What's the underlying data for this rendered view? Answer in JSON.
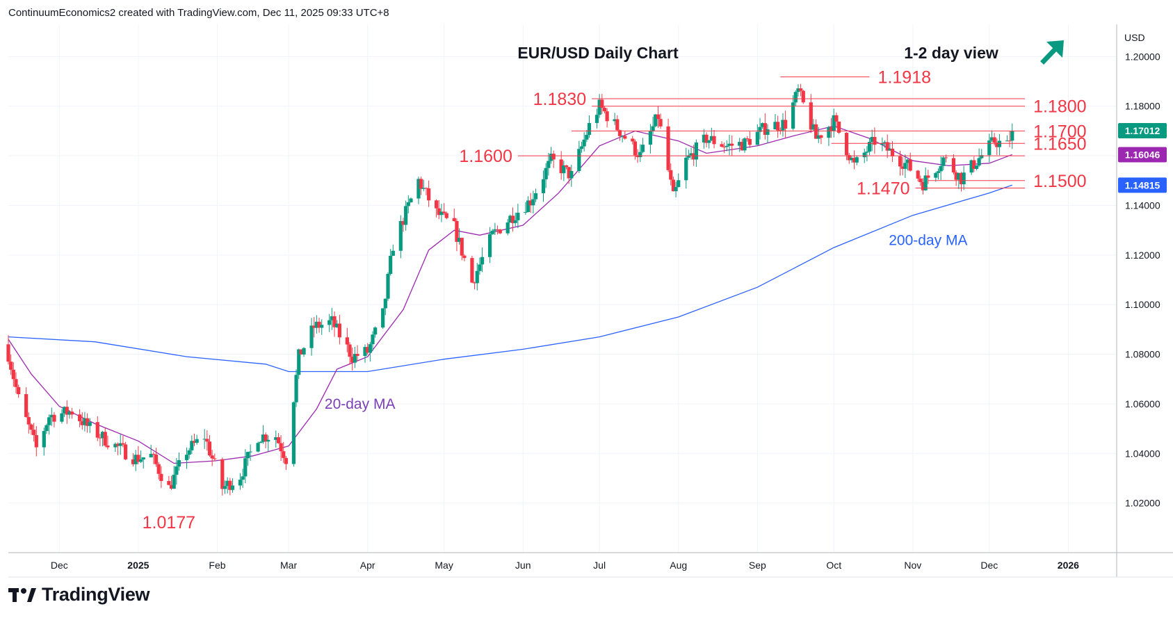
{
  "header": {
    "attribution": "ContinuumEconomics2 created with TradingView.com, Dec 11, 2025 09:33 UTC+8"
  },
  "footer": {
    "brand": "TradingView",
    "logo_icon": "tradingview-logo-icon"
  },
  "colors": {
    "up": "#089981",
    "down": "#f23645",
    "ma20": "#9c27b0",
    "ma200": "#2962ff",
    "level": "#f23645",
    "grid": "#f0f3fa",
    "axis_text": "#131722",
    "view_arrow": "#089981"
  },
  "chart_data": {
    "type": "candlestick",
    "title": "EUR/USD Daily Chart",
    "view_label": "1-2 day view",
    "view_icon": "arrow-up-right-icon",
    "currency": "USD",
    "ylim": [
      1.0,
      1.213
    ],
    "y_ticks": [
      1.02,
      1.04,
      1.06,
      1.08,
      1.1,
      1.12,
      1.14,
      1.16,
      1.18,
      1.2
    ],
    "y_tick_labels": [
      "1.02000",
      "1.04000",
      "1.06000",
      "1.08000",
      "1.10000",
      "1.12000",
      "1.14000",
      "1.16000",
      "1.18000",
      "1.20000"
    ],
    "x_range": [
      "2024-11-11",
      "2026-01-20"
    ],
    "x_ticks": [
      {
        "date": "2024-12-01",
        "label": "Dec"
      },
      {
        "date": "2025-01-01",
        "label": "2025"
      },
      {
        "date": "2025-02-01",
        "label": "Feb"
      },
      {
        "date": "2025-03-01",
        "label": "Mar"
      },
      {
        "date": "2025-04-01",
        "label": "Apr"
      },
      {
        "date": "2025-05-01",
        "label": "May"
      },
      {
        "date": "2025-06-01",
        "label": "Jun"
      },
      {
        "date": "2025-07-01",
        "label": "Jul"
      },
      {
        "date": "2025-08-01",
        "label": "Aug"
      },
      {
        "date": "2025-09-01",
        "label": "Sep"
      },
      {
        "date": "2025-10-01",
        "label": "Oct"
      },
      {
        "date": "2025-11-01",
        "label": "Nov"
      },
      {
        "date": "2025-12-01",
        "label": "Dec"
      },
      {
        "date": "2026-01-01",
        "label": "2026"
      }
    ],
    "price_badges": [
      {
        "label": "1.17012",
        "value": 1.17012,
        "color": "#089981"
      },
      {
        "label": "1.16046",
        "value": 1.16046,
        "color": "#9c27b0"
      },
      {
        "label": "1.14815",
        "value": 1.14815,
        "color": "#2962ff"
      }
    ],
    "levels": [
      {
        "label": "1.1918",
        "value": 1.1918,
        "from": "2025-09-10",
        "to": "2025-10-15",
        "label_side": "right"
      },
      {
        "label": "1.1830",
        "value": 1.183,
        "from": "2025-06-28",
        "to": "2025-12-15",
        "label_side": "left"
      },
      {
        "label": "1.1800",
        "value": 1.18,
        "from": "2025-06-28",
        "to": "2025-12-15",
        "label_side": "right"
      },
      {
        "label": "1.1700",
        "value": 1.17,
        "from": "2025-06-20",
        "to": "2025-12-15",
        "label_side": "right"
      },
      {
        "label": "1.1650",
        "value": 1.165,
        "from": "2025-09-30",
        "to": "2025-12-15",
        "label_side": "right"
      },
      {
        "label": "1.1600",
        "value": 1.16,
        "from": "2025-05-30",
        "to": "2025-12-15",
        "label_side": "left"
      },
      {
        "label": "1.1500",
        "value": 1.15,
        "from": "2025-11-07",
        "to": "2025-12-15",
        "label_side": "right"
      },
      {
        "label": "1.1470",
        "value": 1.147,
        "from": "2025-11-02",
        "to": "2025-12-15",
        "label_side": "left"
      }
    ],
    "annotations": [
      {
        "text": "1.0177",
        "date": "2025-01-13",
        "value": 1.0177,
        "color": "#f23645"
      },
      {
        "text": "20-day MA",
        "date": "2025-03-29",
        "value": 1.058,
        "color": "#7b3fb8"
      },
      {
        "text": "200-day MA",
        "date": "2025-11-07",
        "value": 1.124,
        "color": "#2962ff"
      }
    ],
    "series": [
      {
        "name": "20-day MA",
        "color": "#9c27b0",
        "points": [
          [
            "2024-11-11",
            1.086
          ],
          [
            "2024-11-20",
            1.072
          ],
          [
            "2024-12-01",
            1.059
          ],
          [
            "2024-12-15",
            1.052
          ],
          [
            "2025-01-01",
            1.045
          ],
          [
            "2025-01-15",
            1.036
          ],
          [
            "2025-01-31",
            1.037
          ],
          [
            "2025-02-15",
            1.039
          ],
          [
            "2025-03-01",
            1.043
          ],
          [
            "2025-03-12",
            1.058
          ],
          [
            "2025-03-20",
            1.074
          ],
          [
            "2025-04-01",
            1.079
          ],
          [
            "2025-04-15",
            1.098
          ],
          [
            "2025-04-25",
            1.122
          ],
          [
            "2025-05-05",
            1.13
          ],
          [
            "2025-05-15",
            1.128
          ],
          [
            "2025-06-01",
            1.132
          ],
          [
            "2025-06-15",
            1.145
          ],
          [
            "2025-07-01",
            1.164
          ],
          [
            "2025-07-15",
            1.17
          ],
          [
            "2025-08-01",
            1.166
          ],
          [
            "2025-08-12",
            1.161
          ],
          [
            "2025-09-01",
            1.164
          ],
          [
            "2025-09-15",
            1.168
          ],
          [
            "2025-10-01",
            1.172
          ],
          [
            "2025-10-15",
            1.167
          ],
          [
            "2025-11-01",
            1.158
          ],
          [
            "2025-11-15",
            1.156
          ],
          [
            "2025-12-01",
            1.157
          ],
          [
            "2025-12-10",
            1.1605
          ]
        ]
      },
      {
        "name": "200-day MA",
        "color": "#2962ff",
        "points": [
          [
            "2024-11-11",
            1.087
          ],
          [
            "2024-12-15",
            1.085
          ],
          [
            "2025-01-20",
            1.079
          ],
          [
            "2025-02-20",
            1.076
          ],
          [
            "2025-03-01",
            1.073
          ],
          [
            "2025-04-01",
            1.073
          ],
          [
            "2025-05-01",
            1.078
          ],
          [
            "2025-06-01",
            1.082
          ],
          [
            "2025-07-01",
            1.087
          ],
          [
            "2025-08-01",
            1.095
          ],
          [
            "2025-09-01",
            1.107
          ],
          [
            "2025-10-01",
            1.123
          ],
          [
            "2025-11-01",
            1.136
          ],
          [
            "2025-12-01",
            1.145
          ],
          [
            "2025-12-10",
            1.1482
          ]
        ]
      }
    ],
    "candles_note": "approximate daily path, values in price units",
    "price_path": [
      [
        "2024-11-11",
        1.08
      ],
      [
        "2024-11-15",
        1.062
      ],
      [
        "2024-11-22",
        1.042
      ],
      [
        "2024-11-27",
        1.055
      ],
      [
        "2024-12-06",
        1.057
      ],
      [
        "2024-12-13",
        1.05
      ],
      [
        "2024-12-20",
        1.045
      ],
      [
        "2024-12-31",
        1.038
      ],
      [
        "2025-01-06",
        1.039
      ],
      [
        "2025-01-13",
        1.026
      ],
      [
        "2025-01-20",
        1.041
      ],
      [
        "2025-01-27",
        1.047
      ],
      [
        "2025-02-03",
        1.026
      ],
      [
        "2025-02-10",
        1.031
      ],
      [
        "2025-02-17",
        1.047
      ],
      [
        "2025-02-24",
        1.047
      ],
      [
        "2025-02-28",
        1.038
      ],
      [
        "2025-03-05",
        1.079
      ],
      [
        "2025-03-11",
        1.091
      ],
      [
        "2025-03-18",
        1.093
      ],
      [
        "2025-03-26",
        1.079
      ],
      [
        "2025-04-01",
        1.081
      ],
      [
        "2025-04-07",
        1.096
      ],
      [
        "2025-04-11",
        1.124
      ],
      [
        "2025-04-21",
        1.15
      ],
      [
        "2025-04-28",
        1.137
      ],
      [
        "2025-05-05",
        1.131
      ],
      [
        "2025-05-12",
        1.109
      ],
      [
        "2025-05-20",
        1.128
      ],
      [
        "2025-05-27",
        1.135
      ],
      [
        "2025-06-04",
        1.142
      ],
      [
        "2025-06-12",
        1.158
      ],
      [
        "2025-06-20",
        1.152
      ],
      [
        "2025-06-27",
        1.172
      ],
      [
        "2025-07-01",
        1.18
      ],
      [
        "2025-07-09",
        1.17
      ],
      [
        "2025-07-17",
        1.16
      ],
      [
        "2025-07-24",
        1.176
      ],
      [
        "2025-07-30",
        1.143
      ],
      [
        "2025-08-04",
        1.158
      ],
      [
        "2025-08-12",
        1.167
      ],
      [
        "2025-08-20",
        1.164
      ],
      [
        "2025-08-27",
        1.165
      ],
      [
        "2025-09-05",
        1.172
      ],
      [
        "2025-09-12",
        1.173
      ],
      [
        "2025-09-17",
        1.186
      ],
      [
        "2025-09-24",
        1.167
      ],
      [
        "2025-10-01",
        1.174
      ],
      [
        "2025-10-09",
        1.156
      ],
      [
        "2025-10-17",
        1.166
      ],
      [
        "2025-10-24",
        1.161
      ],
      [
        "2025-10-30",
        1.156
      ],
      [
        "2025-11-05",
        1.149
      ],
      [
        "2025-11-13",
        1.159
      ],
      [
        "2025-11-20",
        1.151
      ],
      [
        "2025-11-27",
        1.159
      ],
      [
        "2025-12-03",
        1.166
      ],
      [
        "2025-12-08",
        1.164
      ],
      [
        "2025-12-10",
        1.1701
      ]
    ]
  }
}
